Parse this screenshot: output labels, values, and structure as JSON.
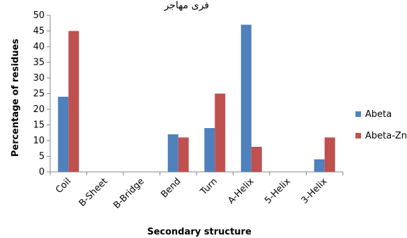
{
  "header_fragment": "ﻓﺮی ﻣﻬﺎﺟﺮ",
  "chart_data": {
    "type": "bar",
    "categories": [
      "Coil",
      "B-Sheet",
      "B-Bridge",
      "Bend",
      "Turn",
      "A-Helix",
      "5-Helix",
      "3-Helix"
    ],
    "series": [
      {
        "name": "Abeta",
        "color": "#4f81bd",
        "values": [
          24,
          0,
          0,
          12,
          14,
          47,
          0,
          4
        ]
      },
      {
        "name": "Abeta-Zn",
        "color": "#c0504d",
        "values": [
          45,
          0,
          0,
          11,
          25,
          8,
          0,
          11
        ]
      }
    ],
    "xlabel": "Secondary structure",
    "ylabel": "Percentage of residues",
    "ylim": [
      0,
      50
    ],
    "yticks": [
      0,
      5,
      10,
      15,
      20,
      25,
      30,
      35,
      40,
      45,
      50
    ],
    "legend_position": "right",
    "grid": false
  }
}
